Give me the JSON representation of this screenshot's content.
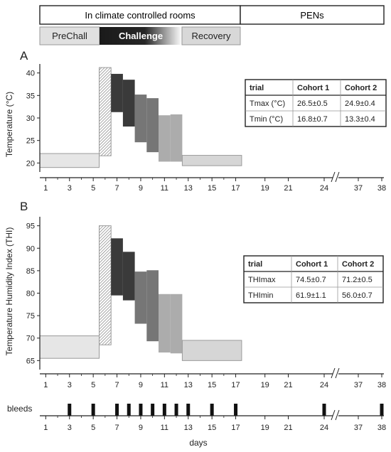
{
  "header": {
    "locations": [
      "In climate controlled rooms",
      "PENs"
    ],
    "phases": [
      "PreChall",
      "Challenge",
      "Recovery"
    ]
  },
  "x_axis": {
    "ticks": [
      "1",
      "3",
      "5",
      "7",
      "9",
      "11",
      "13",
      "15",
      "17",
      "19",
      "21",
      "24",
      "37",
      "38"
    ],
    "label": "days",
    "break_after": "24"
  },
  "bleeds": {
    "label": "bleeds",
    "days": [
      3,
      5,
      7,
      8,
      9,
      10,
      11,
      12,
      13,
      15,
      17,
      24,
      38
    ]
  },
  "chart_data": [
    {
      "type": "bar",
      "panel": "A",
      "ylabel": "Temperature (°C)",
      "ylim": [
        18,
        42
      ],
      "yticks": [
        20,
        25,
        30,
        35,
        40
      ],
      "colors": {
        "prechall": "#e6e6e6",
        "challenge_peak": "hatched",
        "recovery": "#d6d6d6"
      },
      "series": [
        {
          "x_range": [
            0,
            5
          ],
          "min": 19.0,
          "max": 22.1,
          "fill": "#e6e6e6"
        },
        {
          "x_range": [
            5,
            6
          ],
          "min": 21.6,
          "max": 41.2,
          "fill": "hatch"
        },
        {
          "x_range": [
            6,
            7
          ],
          "min": 31.3,
          "max": 39.8,
          "fill": "#3a3a3a"
        },
        {
          "x_range": [
            7,
            8
          ],
          "min": 28.1,
          "max": 38.5,
          "fill": "#3a3a3a"
        },
        {
          "x_range": [
            8,
            9
          ],
          "min": 24.6,
          "max": 35.2,
          "fill": "#767676"
        },
        {
          "x_range": [
            9,
            10
          ],
          "min": 22.4,
          "max": 34.4,
          "fill": "#767676"
        },
        {
          "x_range": [
            10,
            11
          ],
          "min": 20.3,
          "max": 30.6,
          "fill": "#acacac"
        },
        {
          "x_range": [
            11,
            12
          ],
          "min": 20.3,
          "max": 30.8,
          "fill": "#acacac"
        },
        {
          "x_range": [
            12,
            17
          ],
          "min": 19.4,
          "max": 21.7,
          "fill": "#d6d6d6"
        }
      ],
      "table": {
        "header": [
          "trial",
          "Cohort 1",
          "Cohort 2"
        ],
        "rows": [
          [
            "Tmax (°C)",
            "26.5±0.5",
            "24.9±0.4"
          ],
          [
            "Tmin (°C)",
            "16.8±0.7",
            "13.3±0.4"
          ]
        ]
      }
    },
    {
      "type": "bar",
      "panel": "B",
      "ylabel": "Temperature Humidity Index (THI)",
      "ylim": [
        63,
        97
      ],
      "yticks": [
        65,
        70,
        75,
        80,
        85,
        90,
        95
      ],
      "series": [
        {
          "x_range": [
            0,
            5
          ],
          "min": 65.5,
          "max": 70.5,
          "fill": "#e6e6e6"
        },
        {
          "x_range": [
            5,
            6
          ],
          "min": 68.5,
          "max": 95.0,
          "fill": "hatch"
        },
        {
          "x_range": [
            6,
            7
          ],
          "min": 79.5,
          "max": 92.2,
          "fill": "#3a3a3a"
        },
        {
          "x_range": [
            7,
            8
          ],
          "min": 78.4,
          "max": 89.2,
          "fill": "#3a3a3a"
        },
        {
          "x_range": [
            8,
            9
          ],
          "min": 73.2,
          "max": 84.8,
          "fill": "#767676"
        },
        {
          "x_range": [
            9,
            10
          ],
          "min": 69.3,
          "max": 85.1,
          "fill": "#767676"
        },
        {
          "x_range": [
            10,
            11
          ],
          "min": 66.8,
          "max": 79.8,
          "fill": "#acacac"
        },
        {
          "x_range": [
            11,
            12
          ],
          "min": 66.6,
          "max": 79.8,
          "fill": "#acacac"
        },
        {
          "x_range": [
            12,
            17
          ],
          "min": 65.0,
          "max": 69.5,
          "fill": "#d6d6d6"
        }
      ],
      "table": {
        "header": [
          "trial",
          "Cohort 1",
          "Cohort 2"
        ],
        "rows": [
          [
            "THImax",
            "74.5±0.7",
            "71.2±0.5"
          ],
          [
            "THImin",
            "61.9±1.1",
            "56.0±0.7"
          ]
        ]
      }
    }
  ]
}
